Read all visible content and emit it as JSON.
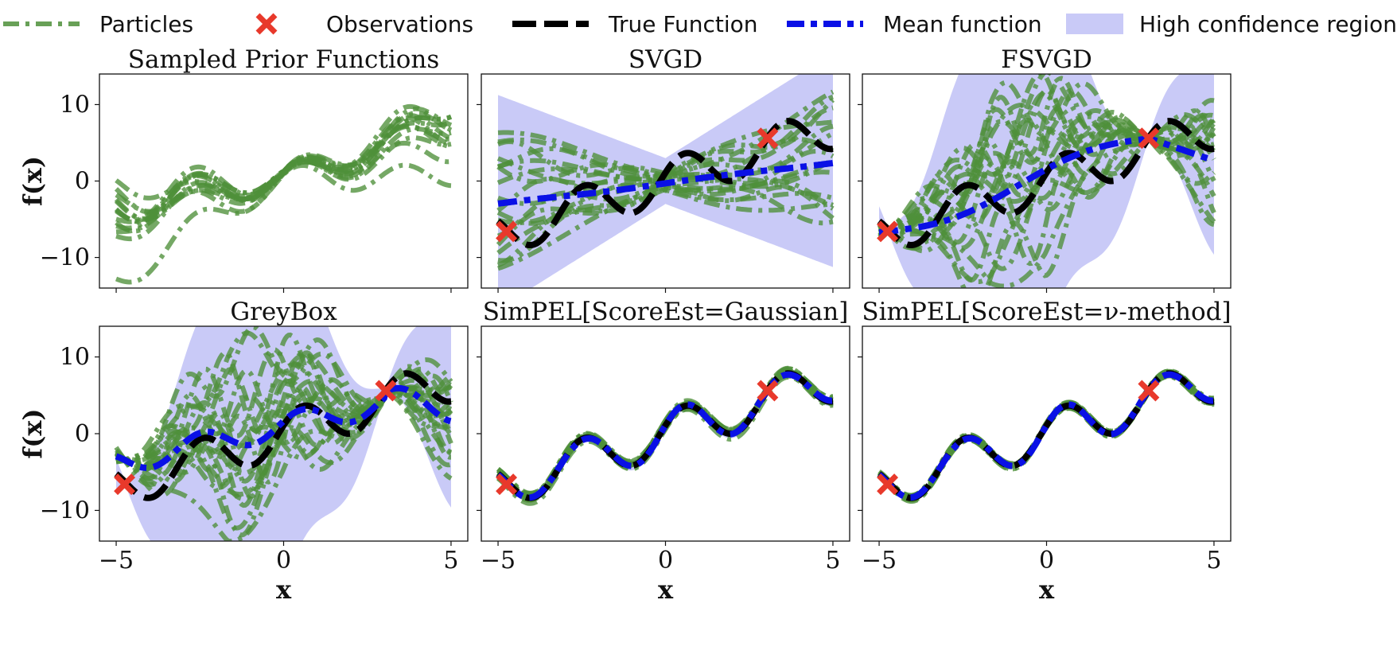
{
  "colors": {
    "particles": "#4e8f3a",
    "observations": "#e8392b",
    "true_function": "#000000",
    "mean_function": "#0a10e6",
    "confidence": "#c9caf7"
  },
  "legend": [
    {
      "key": "particles",
      "label": "Particles"
    },
    {
      "key": "observations",
      "label": "Observations"
    },
    {
      "key": "true_function",
      "label": "True Function"
    },
    {
      "key": "mean_function",
      "label": "Mean function"
    },
    {
      "key": "confidence",
      "label": "High confidence region"
    }
  ],
  "axes": {
    "xlabel": "x",
    "ylabel": "f(x)",
    "xlim": [
      -5.5,
      5.5
    ],
    "ylim": [
      -14,
      14
    ],
    "xticks": [
      -5,
      0,
      5
    ],
    "yticks": [
      10,
      0,
      -10
    ],
    "xtick_labels": [
      "−5",
      "0",
      "5"
    ],
    "ytick_labels": [
      "10",
      "0",
      "−10"
    ]
  },
  "chart_data": [
    {
      "type": "line",
      "title": "Sampled Prior Functions",
      "x_range": [
        -5,
        5
      ],
      "true_function": "",
      "observations": [],
      "mean_function": [],
      "confidence_band": {
        "lower": [],
        "upper": []
      },
      "particles": {
        "count": 14,
        "spread_at_ends": 8,
        "spread_at_center": 0.5
      }
    },
    {
      "type": "line",
      "title": "SVGD",
      "observations": [
        {
          "x": -4.75,
          "y": -6.6
        },
        {
          "x": 3.05,
          "y": 5.6
        }
      ],
      "mean_function": {
        "x": [
          -5,
          0,
          5
        ],
        "y": [
          -3.2,
          0.0,
          2.2
        ]
      },
      "confidence_band": {
        "lower": [
          -14,
          -3.5,
          -14
        ],
        "upper": [
          8,
          3.5,
          14
        ]
      },
      "particles": {
        "count": 18,
        "spread_at_ends": 10,
        "spread_at_center": 1.5
      }
    },
    {
      "type": "line",
      "title": "FSVGD",
      "observations": [
        {
          "x": -4.75,
          "y": -6.6
        },
        {
          "x": 3.05,
          "y": 5.6
        }
      ],
      "mean_function": {
        "x": [
          -5,
          -2,
          0,
          2,
          3.05,
          5
        ],
        "y": [
          -6.6,
          -1.2,
          -0.1,
          2.6,
          5.6,
          2.6
        ]
      },
      "confidence_band": {
        "lower": [
          -7,
          -14,
          -14,
          -14,
          5.6,
          -14
        ],
        "upper": [
          -6,
          14,
          14,
          14,
          5.6,
          14
        ]
      },
      "particles": {
        "count": 20,
        "spread_at_ends": 12,
        "spread_at_center": 12
      }
    },
    {
      "type": "line",
      "title": "GreyBox",
      "observations": [
        {
          "x": -4.75,
          "y": -6.6
        },
        {
          "x": 3.05,
          "y": 5.6
        }
      ],
      "mean_function": {
        "x": [
          -5,
          -2,
          0,
          2,
          3.05,
          5
        ],
        "y": [
          -6.6,
          -1.5,
          0.2,
          2.3,
          5.6,
          2.7
        ]
      },
      "confidence_band": {
        "lower": [
          -7,
          -14,
          -14,
          -14,
          5.6,
          -12
        ],
        "upper": [
          -6,
          14,
          14,
          14,
          5.6,
          14
        ]
      },
      "particles": {
        "count": 20,
        "spread_at_ends": 12,
        "spread_at_center": 12
      }
    },
    {
      "type": "line",
      "title": "SimPEL[ScoreEst=Gaussian]",
      "observations": [
        {
          "x": -4.75,
          "y": -6.6
        },
        {
          "x": 3.05,
          "y": 5.6
        }
      ],
      "mean_function": "follows true function",
      "confidence_band": {
        "half_width": 0.6
      },
      "particles": {
        "count": 14,
        "spread_at_ends": 0.8,
        "spread_at_center": 0.8
      }
    },
    {
      "type": "line",
      "title": "SimPEL[ScoreEst=ν-method]",
      "observations": [
        {
          "x": -4.75,
          "y": -6.6
        },
        {
          "x": 3.05,
          "y": 5.6
        }
      ],
      "mean_function": "follows true function",
      "confidence_band": {
        "half_width": 0.4
      },
      "particles": {
        "count": 14,
        "spread_at_ends": 0.5,
        "spread_at_center": 0.5
      }
    }
  ]
}
